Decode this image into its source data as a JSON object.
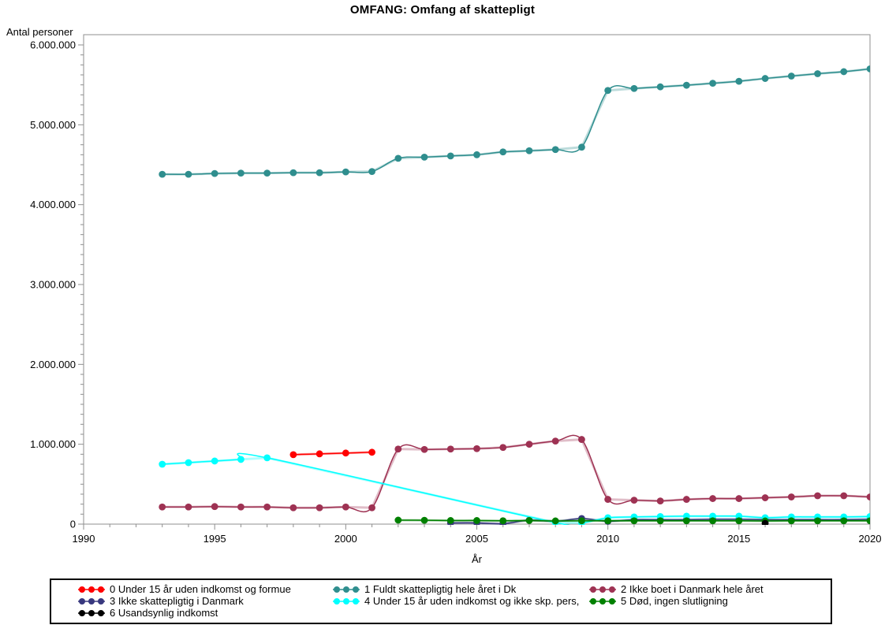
{
  "page": {
    "background": "#ffffff"
  },
  "chart_data": {
    "type": "line",
    "title": "OMFANG: Omfang af skattepligt",
    "xlabel": "År",
    "ylabel": "Antal personer",
    "xlim": [
      1990,
      2020
    ],
    "ylim": [
      0,
      6000000
    ],
    "grid": false,
    "legend_position": "bottom",
    "frame_color": "#8f8f8f",
    "x_minor_step": 1,
    "y_minor_step": 125000,
    "x_ticks": [
      {
        "value": 1990,
        "label": "1990"
      },
      {
        "value": 1995,
        "label": "1995"
      },
      {
        "value": 2000,
        "label": "2000"
      },
      {
        "value": 2005,
        "label": "2005"
      },
      {
        "value": 2010,
        "label": "2010"
      },
      {
        "value": 2015,
        "label": "2015"
      },
      {
        "value": 2020,
        "label": "2020"
      }
    ],
    "y_ticks": [
      {
        "value": 0,
        "label": "0"
      },
      {
        "value": 1000000,
        "label": "1.000.000"
      },
      {
        "value": 2000000,
        "label": "2.000.000"
      },
      {
        "value": 3000000,
        "label": "3.000.000"
      },
      {
        "value": 4000000,
        "label": "4.000.000"
      },
      {
        "value": 5000000,
        "label": "5.000.000"
      },
      {
        "value": 6000000,
        "label": "6.000.000"
      }
    ],
    "series": [
      {
        "name": "0 Under 15 år uden indkomst og formue",
        "color": "#ff0000",
        "points": [
          [
            1998,
            870000
          ],
          [
            1999,
            880000
          ],
          [
            2000,
            890000
          ],
          [
            2001,
            900000
          ]
        ]
      },
      {
        "name": "1 Fuldt skattepligtig hele året i Dk",
        "color": "#2f8e8e",
        "points": [
          [
            1993,
            4380000
          ],
          [
            1994,
            4380000
          ],
          [
            1995,
            4390000
          ],
          [
            1996,
            4395000
          ],
          [
            1997,
            4395000
          ],
          [
            1998,
            4400000
          ],
          [
            1999,
            4400000
          ],
          [
            2000,
            4410000
          ],
          [
            2001,
            4415000
          ],
          [
            2002,
            4580000
          ],
          [
            2003,
            4595000
          ],
          [
            2004,
            4610000
          ],
          [
            2005,
            4625000
          ],
          [
            2006,
            4660000
          ],
          [
            2007,
            4675000
          ],
          [
            2008,
            4690000
          ],
          [
            2009,
            4720000
          ],
          [
            2010,
            5430000
          ],
          [
            2011,
            5455000
          ],
          [
            2012,
            5475000
          ],
          [
            2013,
            5495000
          ],
          [
            2014,
            5520000
          ],
          [
            2015,
            5545000
          ],
          [
            2016,
            5580000
          ],
          [
            2017,
            5610000
          ],
          [
            2018,
            5640000
          ],
          [
            2019,
            5665000
          ],
          [
            2020,
            5700000
          ]
        ]
      },
      {
        "name": "2 Ikke boet i Danmark hele året",
        "color": "#9e3253",
        "points": [
          [
            1993,
            215000
          ],
          [
            1994,
            215000
          ],
          [
            1995,
            220000
          ],
          [
            1996,
            215000
          ],
          [
            1997,
            215000
          ],
          [
            1998,
            205000
          ],
          [
            1999,
            205000
          ],
          [
            2000,
            215000
          ],
          [
            2001,
            205000
          ],
          [
            2002,
            940000
          ],
          [
            2003,
            935000
          ],
          [
            2004,
            940000
          ],
          [
            2005,
            945000
          ],
          [
            2006,
            960000
          ],
          [
            2007,
            1000000
          ],
          [
            2008,
            1040000
          ],
          [
            2009,
            1060000
          ],
          [
            2010,
            310000
          ],
          [
            2011,
            300000
          ],
          [
            2012,
            290000
          ],
          [
            2013,
            310000
          ],
          [
            2014,
            320000
          ],
          [
            2015,
            320000
          ],
          [
            2016,
            330000
          ],
          [
            2017,
            340000
          ],
          [
            2018,
            355000
          ],
          [
            2019,
            355000
          ],
          [
            2020,
            340000
          ]
        ]
      },
      {
        "name": "3 Ikke skattepligtig i Danmark",
        "color": "#38387e",
        "points": [
          [
            2004,
            15000
          ],
          [
            2005,
            15000
          ],
          [
            2006,
            5000
          ],
          [
            2007,
            50000
          ],
          [
            2008,
            35000
          ],
          [
            2009,
            70000
          ],
          [
            2010,
            35000
          ],
          [
            2011,
            55000
          ],
          [
            2012,
            55000
          ],
          [
            2013,
            55000
          ],
          [
            2014,
            60000
          ],
          [
            2015,
            60000
          ],
          [
            2016,
            55000
          ],
          [
            2017,
            55000
          ],
          [
            2018,
            55000
          ],
          [
            2019,
            55000
          ],
          [
            2020,
            60000
          ]
        ]
      },
      {
        "name": "4 Under 15 år uden indkomst og ikke skp. pers,",
        "color": "#00ffff",
        "points": [
          [
            1993,
            750000
          ],
          [
            1994,
            770000
          ],
          [
            1995,
            790000
          ],
          [
            1996,
            810000
          ],
          [
            1997,
            830000
          ],
          [
            2008,
            20000
          ],
          [
            2009,
            15000
          ],
          [
            2010,
            80000
          ],
          [
            2011,
            90000
          ],
          [
            2012,
            95000
          ],
          [
            2013,
            100000
          ],
          [
            2014,
            100000
          ],
          [
            2015,
            100000
          ],
          [
            2016,
            80000
          ],
          [
            2017,
            90000
          ],
          [
            2018,
            90000
          ],
          [
            2019,
            90000
          ],
          [
            2020,
            95000
          ]
        ]
      },
      {
        "name": "5 Død, ingen slutligning",
        "color": "#008000",
        "points": [
          [
            2002,
            50000
          ],
          [
            2003,
            48000
          ],
          [
            2004,
            45000
          ],
          [
            2005,
            45000
          ],
          [
            2006,
            42000
          ],
          [
            2007,
            45000
          ],
          [
            2008,
            40000
          ],
          [
            2009,
            42000
          ],
          [
            2010,
            42000
          ],
          [
            2011,
            42000
          ],
          [
            2012,
            42000
          ],
          [
            2013,
            42000
          ],
          [
            2014,
            42000
          ],
          [
            2015,
            42000
          ],
          [
            2016,
            40000
          ],
          [
            2017,
            42000
          ],
          [
            2018,
            42000
          ],
          [
            2019,
            42000
          ],
          [
            2020,
            42000
          ]
        ]
      },
      {
        "name": "6 Usandsynlig indkomst",
        "color": "#000000",
        "points": [
          [
            2016,
            10000
          ]
        ]
      }
    ]
  }
}
